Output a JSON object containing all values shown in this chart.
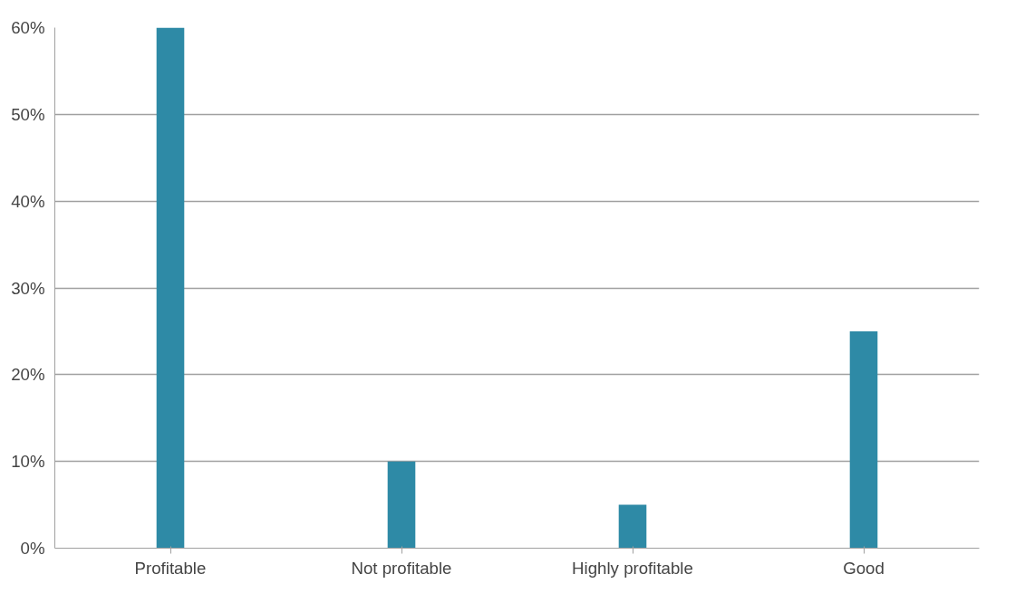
{
  "chart_data": {
    "type": "bar",
    "categories": [
      "Profitable",
      "Not profitable",
      "Highly profitable",
      "Good"
    ],
    "values": [
      60,
      10,
      5,
      25
    ],
    "color": "#2e8aa6",
    "ylim": [
      0,
      60
    ],
    "yticks": [
      {
        "value": 0,
        "label": "0%"
      },
      {
        "value": 10,
        "label": "10%"
      },
      {
        "value": 20,
        "label": "20%"
      },
      {
        "value": 30,
        "label": "30%"
      },
      {
        "value": 40,
        "label": "40%"
      },
      {
        "value": 50,
        "label": "50%"
      },
      {
        "value": 60,
        "label": "60%"
      }
    ],
    "grid": "y"
  }
}
